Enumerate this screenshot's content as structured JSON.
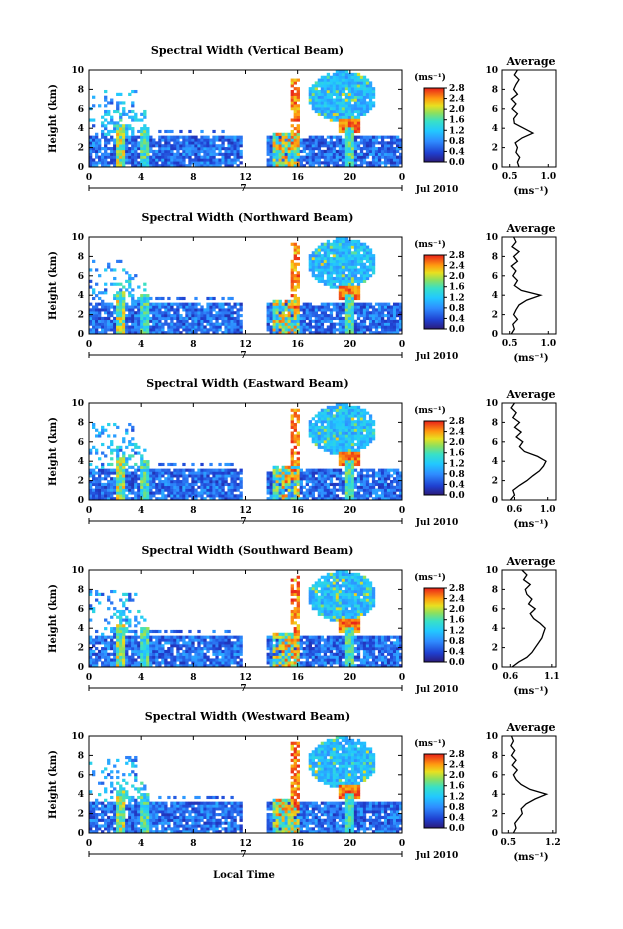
{
  "figure": {
    "xlabel": "Local Time",
    "date_day": "7",
    "date_label": "Jul 2010"
  },
  "chart_data": [
    {
      "type": "heatmap",
      "title": "Spectral Width (Vertical Beam)",
      "ylabel": "Height (km)",
      "xlabel": "Local Time",
      "xticks": [
        "0",
        "4",
        "8",
        "12",
        "16",
        "20",
        "0"
      ],
      "yticks": [
        "0",
        "2",
        "4",
        "6",
        "8",
        "10"
      ],
      "ylim": [
        0,
        10
      ],
      "colorbar": {
        "unit": "(ms⁻¹)",
        "ticks": [
          "0.0",
          "0.4",
          "0.8",
          "1.2",
          "1.6",
          "2.0",
          "2.4",
          "2.8"
        ],
        "range": [
          0,
          2.8
        ]
      },
      "profile": {
        "title": "Average",
        "xlabel": "(ms⁻¹)",
        "xticks": [
          "0.5",
          "1.0"
        ],
        "xlim": [
          0.4,
          1.1
        ],
        "yticks": [
          "0",
          "2",
          "4",
          "6",
          "8",
          "10"
        ],
        "heights": [
          0,
          0.5,
          1,
          1.5,
          2,
          2.5,
          3,
          3.5,
          4,
          4.5,
          5,
          5.5,
          6,
          6.5,
          7,
          7.5,
          8,
          8.5,
          9,
          9.5,
          10
        ],
        "values": [
          0.62,
          0.6,
          0.63,
          0.58,
          0.6,
          0.57,
          0.66,
          0.8,
          0.68,
          0.56,
          0.55,
          0.6,
          0.53,
          0.58,
          0.52,
          0.6,
          0.55,
          0.58,
          0.62,
          0.56,
          0.6
        ]
      }
    },
    {
      "type": "heatmap",
      "title": "Spectral Width (Northward Beam)",
      "ylabel": "Height (km)",
      "xlabel": "Local Time",
      "xticks": [
        "0",
        "4",
        "8",
        "12",
        "16",
        "20",
        "0"
      ],
      "yticks": [
        "0",
        "2",
        "4",
        "6",
        "8",
        "10"
      ],
      "ylim": [
        0,
        10
      ],
      "colorbar": {
        "unit": "(ms⁻¹)",
        "ticks": [
          "0.0",
          "0.4",
          "0.8",
          "1.2",
          "1.6",
          "2.0",
          "2.4",
          "2.8"
        ],
        "range": [
          0,
          2.8
        ]
      },
      "profile": {
        "title": "Average",
        "xlabel": "(ms⁻¹)",
        "xticks": [
          "0.5",
          "1.0"
        ],
        "xlim": [
          0.4,
          1.1
        ],
        "yticks": [
          "0",
          "2",
          "4",
          "6",
          "8",
          "10"
        ],
        "heights": [
          0,
          0.5,
          1,
          1.5,
          2,
          2.5,
          3,
          3.5,
          4,
          4.5,
          5,
          5.5,
          6,
          6.5,
          7,
          7.5,
          8,
          8.5,
          9,
          9.5,
          10
        ],
        "values": [
          0.52,
          0.56,
          0.54,
          0.6,
          0.55,
          0.58,
          0.62,
          0.72,
          0.9,
          0.65,
          0.56,
          0.6,
          0.54,
          0.58,
          0.52,
          0.6,
          0.55,
          0.62,
          0.53,
          0.58,
          0.55
        ]
      }
    },
    {
      "type": "heatmap",
      "title": "Spectral Width (Eastward Beam)",
      "ylabel": "Height (km)",
      "xlabel": "Local Time",
      "xticks": [
        "0",
        "4",
        "8",
        "12",
        "16",
        "20",
        "0"
      ],
      "yticks": [
        "0",
        "2",
        "4",
        "6",
        "8",
        "10"
      ],
      "ylim": [
        0,
        10
      ],
      "colorbar": {
        "unit": "(ms⁻¹)",
        "ticks": [
          "0.0",
          "0.4",
          "0.8",
          "1.2",
          "1.6",
          "2.0",
          "2.4",
          "2.8"
        ],
        "range": [
          0,
          2.8
        ]
      },
      "profile": {
        "title": "Average",
        "xlabel": "(ms⁻¹)",
        "xticks": [
          "0.6",
          "1.0"
        ],
        "xlim": [
          0.45,
          1.1
        ],
        "yticks": [
          "0",
          "2",
          "4",
          "6",
          "8",
          "10"
        ],
        "heights": [
          0,
          0.5,
          1,
          1.5,
          2,
          2.5,
          3,
          3.5,
          4,
          4.5,
          5,
          5.5,
          6,
          6.5,
          7,
          7.5,
          8,
          8.5,
          9,
          9.5,
          10
        ],
        "values": [
          0.55,
          0.6,
          0.58,
          0.66,
          0.75,
          0.82,
          0.9,
          0.95,
          0.98,
          0.88,
          0.72,
          0.66,
          0.7,
          0.62,
          0.68,
          0.6,
          0.66,
          0.58,
          0.62,
          0.56,
          0.6
        ]
      }
    },
    {
      "type": "heatmap",
      "title": "Spectral Width (Southward Beam)",
      "ylabel": "Height (km)",
      "xlabel": "Local Time",
      "xticks": [
        "0",
        "4",
        "8",
        "12",
        "16",
        "20",
        "0"
      ],
      "yticks": [
        "0",
        "2",
        "4",
        "6",
        "8",
        "10"
      ],
      "ylim": [
        0,
        10
      ],
      "colorbar": {
        "unit": "(ms⁻¹)",
        "ticks": [
          "0.0",
          "0.4",
          "0.8",
          "1.2",
          "1.6",
          "2.0",
          "2.4",
          "2.8"
        ],
        "range": [
          0,
          2.8
        ]
      },
      "profile": {
        "title": "Average",
        "xlabel": "(ms⁻¹)",
        "xticks": [
          "0.6",
          "1.1"
        ],
        "xlim": [
          0.5,
          1.15
        ],
        "yticks": [
          "0",
          "2",
          "4",
          "6",
          "8",
          "10"
        ],
        "heights": [
          0,
          0.5,
          1,
          1.5,
          2,
          2.5,
          3,
          3.5,
          4,
          4.5,
          5,
          5.5,
          6,
          6.5,
          7,
          7.5,
          8,
          8.5,
          9,
          9.5,
          10
        ],
        "values": [
          0.62,
          0.7,
          0.8,
          0.86,
          0.9,
          0.94,
          0.98,
          1.0,
          1.02,
          0.96,
          0.88,
          0.84,
          0.9,
          0.82,
          0.86,
          0.8,
          0.78,
          0.84,
          0.76,
          0.8,
          0.74
        ]
      }
    },
    {
      "type": "heatmap",
      "title": "Spectral Width (Westward Beam)",
      "ylabel": "Height (km)",
      "xlabel": "Local Time",
      "xticks": [
        "0",
        "4",
        "8",
        "12",
        "16",
        "20",
        "0"
      ],
      "yticks": [
        "0",
        "2",
        "4",
        "6",
        "8",
        "10"
      ],
      "ylim": [
        0,
        10
      ],
      "colorbar": {
        "unit": "(ms⁻¹)",
        "ticks": [
          "0.0",
          "0.4",
          "0.8",
          "1.2",
          "1.6",
          "2.0",
          "2.4",
          "2.8"
        ],
        "range": [
          0,
          2.8
        ]
      },
      "profile": {
        "title": "Average",
        "xlabel": "(ms⁻¹)",
        "xticks": [
          "0.5",
          "1.2"
        ],
        "xlim": [
          0.4,
          1.25
        ],
        "yticks": [
          "0",
          "2",
          "4",
          "6",
          "8",
          "10"
        ],
        "heights": [
          0,
          0.5,
          1,
          1.5,
          2,
          2.5,
          3,
          3.5,
          4,
          4.5,
          5,
          5.5,
          6,
          6.5,
          7,
          7.5,
          8,
          8.5,
          9,
          9.5,
          10
        ],
        "values": [
          0.58,
          0.62,
          0.6,
          0.66,
          0.72,
          0.7,
          0.78,
          0.92,
          1.1,
          0.84,
          0.7,
          0.62,
          0.58,
          0.64,
          0.56,
          0.62,
          0.55,
          0.6,
          0.54,
          0.58,
          0.55
        ]
      }
    }
  ]
}
